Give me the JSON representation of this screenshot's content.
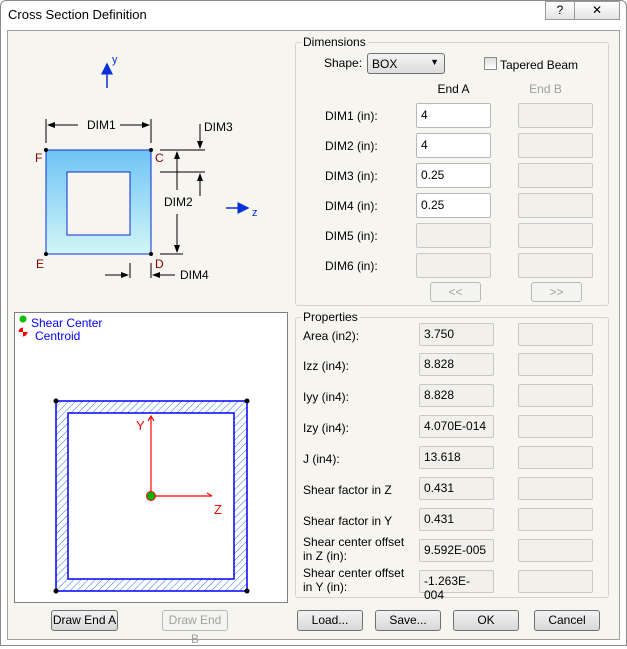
{
  "window": {
    "title": "Cross Section Definition",
    "help_label": "?",
    "close_label": "✕"
  },
  "diagram": {
    "axis_y": "y",
    "axis_z": "z",
    "dim1": "DIM1",
    "dim2": "DIM2",
    "dim3": "DIM3",
    "dim4": "DIM4",
    "corner_c": "C",
    "corner_d": "D",
    "corner_e": "E",
    "corner_f": "F",
    "colors": {
      "section_fill_top": "#6ec3f5",
      "section_fill_bottom": "#d2f6f6",
      "outline": "#0a2fd6",
      "corner_label": "#8b0000"
    }
  },
  "preview": {
    "legend_shear_center": "Shear Center",
    "legend_centroid": "Centroid",
    "axis_y": "Y",
    "axis_z": "Z",
    "colors": {
      "axis": "#ff0000",
      "outline": "#0000ff",
      "shear_center": "#00c000"
    }
  },
  "buttons": {
    "draw_end_a": "Draw End A",
    "draw_end_b": "Draw End B",
    "load": "Load...",
    "save": "Save...",
    "ok": "OK",
    "cancel": "Cancel",
    "copy_left": "<<",
    "copy_right": ">>"
  },
  "dimensions": {
    "title": "Dimensions",
    "shape_label": "Shape:",
    "shape_value": "BOX",
    "tapered_label": "Tapered Beam",
    "tapered_checked": false,
    "end_a_header": "End A",
    "end_b_header": "End B",
    "rows": [
      {
        "label": "DIM1 (in):",
        "end_a": "4",
        "end_b": ""
      },
      {
        "label": "DIM2 (in):",
        "end_a": "4",
        "end_b": ""
      },
      {
        "label": "DIM3 (in):",
        "end_a": "0.25",
        "end_b": ""
      },
      {
        "label": "DIM4 (in):",
        "end_a": "0.25",
        "end_b": ""
      },
      {
        "label": "DIM5 (in):",
        "end_a": "",
        "end_b": ""
      },
      {
        "label": "DIM6 (in):",
        "end_a": "",
        "end_b": ""
      }
    ]
  },
  "properties": {
    "title": "Properties",
    "rows": [
      {
        "label": "Area (in2):",
        "end_a": "3.750",
        "end_b": ""
      },
      {
        "label": "Izz (in4):",
        "end_a": "8.828",
        "end_b": ""
      },
      {
        "label": "Iyy (in4):",
        "end_a": "8.828",
        "end_b": ""
      },
      {
        "label": "Izy (in4):",
        "end_a": "4.070E-014",
        "end_b": ""
      },
      {
        "label": "J (in4):",
        "end_a": "13.618",
        "end_b": ""
      },
      {
        "label": "Shear factor in Z",
        "end_a": "0.431",
        "end_b": ""
      },
      {
        "label": "Shear factor in Y",
        "end_a": "0.431",
        "end_b": ""
      },
      {
        "label": "Shear center offset in Z (in):",
        "end_a": "9.592E-005",
        "end_b": ""
      },
      {
        "label": "Shear center offset in Y (in):",
        "end_a": "-1.263E-004",
        "end_b": ""
      }
    ]
  }
}
